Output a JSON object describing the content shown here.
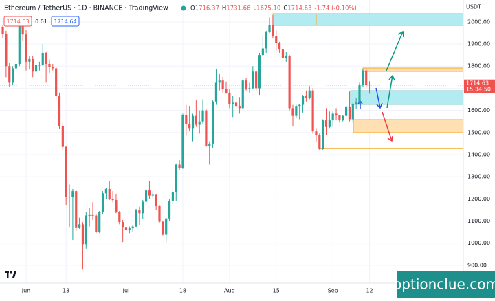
{
  "chart_data": {
    "type": "candlestick",
    "title": "Ethereum / TetherUS · 1D · BINANCE · TradingView",
    "readout": {
      "labels": [
        "O",
        "H",
        "L",
        "C"
      ],
      "values": [
        "1716.37",
        "1731.66",
        "1675.10",
        "1714.63"
      ],
      "change": "-1.74 (-0.10%)"
    },
    "order_panel": {
      "sell": "1714.63",
      "spread": "0.01",
      "buy": "1714.64"
    },
    "axis_unit": "USDT",
    "countdown": "15:34:50",
    "watermark": "optionclue.com",
    "categories": [
      null,
      null,
      null,
      null,
      null,
      null,
      null,
      "Jun",
      null,
      null,
      null,
      null,
      null,
      null,
      null,
      null,
      null,
      null,
      null,
      "13",
      null,
      null,
      null,
      null,
      null,
      null,
      null,
      null,
      null,
      null,
      null,
      null,
      null,
      null,
      null,
      null,
      null,
      "Jul",
      null,
      null,
      null,
      null,
      null,
      null,
      null,
      null,
      null,
      null,
      null,
      null,
      null,
      null,
      null,
      null,
      "18",
      null,
      null,
      null,
      null,
      null,
      null,
      null,
      null,
      null,
      null,
      null,
      null,
      null,
      "Aug",
      null,
      null,
      null,
      null,
      null,
      null,
      null,
      null,
      null,
      null,
      null,
      null,
      null,
      "15",
      null,
      null,
      null,
      null,
      null,
      null,
      null,
      null,
      null,
      null,
      null,
      null,
      null,
      null,
      null,
      null,
      "Sep",
      null,
      null,
      null,
      null,
      null,
      null,
      null,
      null,
      null,
      null,
      "12"
    ],
    "open": [
      1975,
      1944,
      1800,
      1725,
      1790,
      1810,
      1995,
      1943,
      1820,
      1832,
      1775,
      1805,
      1806,
      1860,
      1810,
      1795,
      1790,
      1665,
      1530,
      1435,
      1210,
      1208,
      1235,
      1068,
      1085,
      995,
      1125,
      1127,
      1125,
      1050,
      1140,
      1225,
      1245,
      1200,
      1195,
      1140,
      1095,
      1070,
      1060,
      1067,
      1075,
      1150,
      1135,
      1187,
      1238,
      1215,
      1218,
      1167,
      1097,
      1038,
      1112,
      1192,
      1232,
      1355,
      1340,
      1580,
      1540,
      1520,
      1575,
      1535,
      1550,
      1600,
      1440,
      1450,
      1640,
      1725,
      1735,
      1695,
      1680,
      1630,
      1635,
      1620,
      1610,
      1735,
      1695,
      1700,
      1775,
      1700,
      1850,
      1880,
      1955,
      1985,
      1935,
      1905,
      1875,
      1835,
      1845,
      1610,
      1575,
      1620,
      1625,
      1665,
      1655,
      1690,
      1505,
      1490,
      1425,
      1555,
      1525,
      1555,
      1585,
      1577,
      1555,
      1575,
      1618,
      1560,
      1630,
      1635,
      1717,
      1780,
      1716.37
    ],
    "high": [
      1985,
      1960,
      1815,
      1800,
      1820,
      2015,
      2000,
      1965,
      1845,
      1845,
      1810,
      1820,
      1900,
      1865,
      1830,
      1810,
      1795,
      1680,
      1545,
      1440,
      1265,
      1245,
      1240,
      1115,
      1095,
      1140,
      1160,
      1185,
      1130,
      1145,
      1235,
      1250,
      1280,
      1235,
      1220,
      1145,
      1105,
      1100,
      1075,
      1080,
      1155,
      1165,
      1195,
      1245,
      1280,
      1235,
      1222,
      1170,
      1100,
      1115,
      1200,
      1245,
      1360,
      1375,
      1585,
      1625,
      1620,
      1585,
      1645,
      1600,
      1650,
      1605,
      1460,
      1645,
      1785,
      1765,
      1750,
      1730,
      1695,
      1665,
      1680,
      1660,
      1740,
      1745,
      1725,
      1800,
      1780,
      1860,
      1940,
      1960,
      2020,
      2030,
      1965,
      1910,
      1900,
      1865,
      1850,
      1625,
      1625,
      1630,
      1670,
      1690,
      1710,
      1700,
      1520,
      1495,
      1560,
      1610,
      1595,
      1595,
      1610,
      1580,
      1580,
      1620,
      1685,
      1635,
      1655,
      1725,
      1785,
      1790,
      1731.66
    ],
    "low": [
      1925,
      1750,
      1705,
      1715,
      1775,
      1800,
      1915,
      1780,
      1785,
      1750,
      1765,
      1780,
      1800,
      1725,
      1770,
      1780,
      1650,
      1515,
      1420,
      1170,
      1070,
      1015,
      1055,
      1065,
      880,
      975,
      1075,
      1105,
      1045,
      1045,
      1130,
      1200,
      1195,
      1185,
      1135,
      1085,
      1005,
      1045,
      1045,
      1050,
      1070,
      1080,
      1110,
      1175,
      1200,
      1205,
      1150,
      1090,
      1035,
      1005,
      1100,
      1175,
      1190,
      1330,
      1335,
      1485,
      1505,
      1460,
      1525,
      1495,
      1540,
      1435,
      1355,
      1430,
      1625,
      1690,
      1680,
      1675,
      1610,
      1570,
      1600,
      1585,
      1605,
      1690,
      1680,
      1695,
      1685,
      1670,
      1845,
      1860,
      1950,
      1925,
      1870,
      1860,
      1820,
      1820,
      1600,
      1530,
      1565,
      1560,
      1590,
      1640,
      1650,
      1495,
      1460,
      1420,
      1420,
      1490,
      1520,
      1530,
      1555,
      1545,
      1550,
      1565,
      1550,
      1545,
      1605,
      1630,
      1705,
      1700,
      1675.1
    ],
    "close": [
      1944,
      1800,
      1725,
      1790,
      1810,
      1995,
      1943,
      1820,
      1832,
      1775,
      1805,
      1806,
      1860,
      1810,
      1795,
      1790,
      1665,
      1530,
      1435,
      1210,
      1208,
      1235,
      1068,
      1085,
      995,
      1125,
      1127,
      1125,
      1050,
      1140,
      1225,
      1245,
      1200,
      1195,
      1140,
      1095,
      1070,
      1060,
      1067,
      1075,
      1150,
      1135,
      1187,
      1238,
      1215,
      1218,
      1167,
      1097,
      1038,
      1112,
      1192,
      1232,
      1355,
      1340,
      1580,
      1540,
      1520,
      1575,
      1535,
      1550,
      1600,
      1440,
      1450,
      1640,
      1725,
      1735,
      1695,
      1680,
      1630,
      1635,
      1620,
      1610,
      1735,
      1695,
      1700,
      1775,
      1700,
      1850,
      1880,
      1955,
      1985,
      1935,
      1905,
      1875,
      1835,
      1845,
      1610,
      1575,
      1620,
      1625,
      1665,
      1655,
      1690,
      1505,
      1490,
      1425,
      1555,
      1525,
      1555,
      1585,
      1577,
      1555,
      1575,
      1618,
      1560,
      1630,
      1635,
      1717,
      1780,
      1716.37,
      1714.63
    ],
    "up_color": "#26a69a",
    "down_color": "#ef5350",
    "ylim": [
      819,
      2099
    ],
    "yticks": [
      {
        "value": 900,
        "label": "900.00"
      },
      {
        "value": 1000,
        "label": "1000.00"
      },
      {
        "value": 1100,
        "label": "1100.00"
      },
      {
        "value": 1200,
        "label": "1200.00"
      },
      {
        "value": 1300,
        "label": "1300.00"
      },
      {
        "value": 1400,
        "label": "1400.00"
      },
      {
        "value": 1500,
        "label": "1500.00"
      },
      {
        "value": 1600,
        "label": "1600.00"
      },
      {
        "value": 1700,
        "label": "1700.00"
      },
      {
        "value": 1800,
        "label": "1800.00"
      },
      {
        "value": 1900,
        "label": "1900.00"
      },
      {
        "value": 2000,
        "label": "2000.00"
      }
    ],
    "grid": true
  }
}
